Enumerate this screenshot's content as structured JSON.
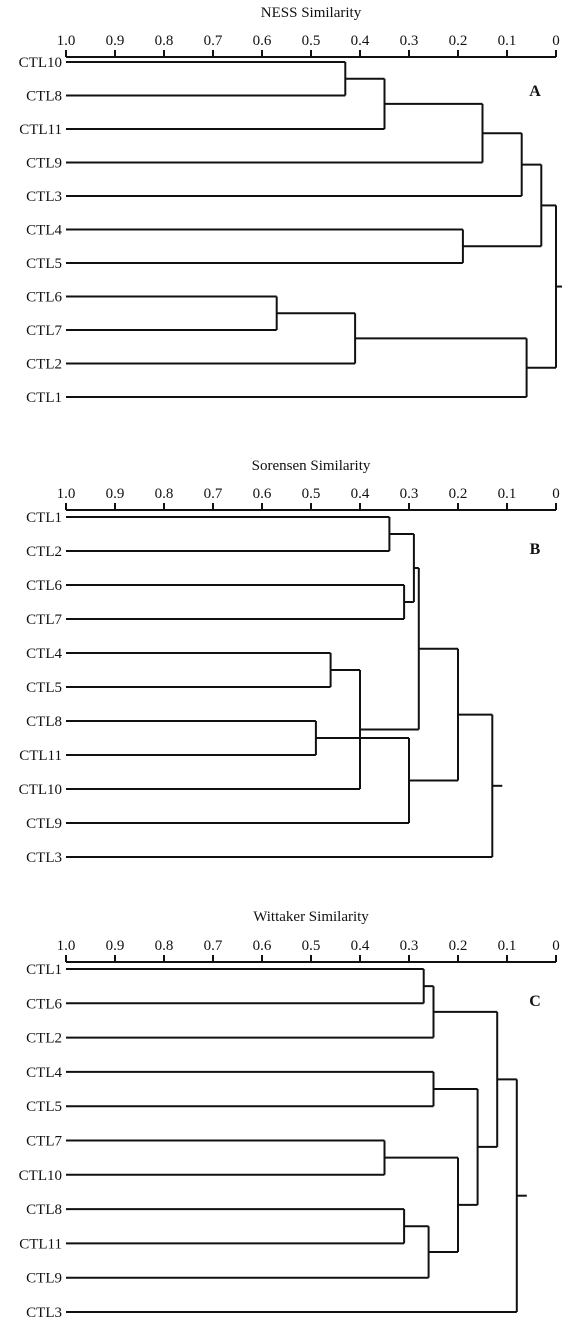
{
  "ticks": [
    "1.0",
    "0.9",
    "0.8",
    "0.7",
    "0.6",
    "0.5",
    "0.4",
    "0.3",
    "0.2",
    "0.1",
    "0"
  ],
  "panels": [
    {
      "id": "A",
      "title": "NESS Similarity",
      "label": "A",
      "leaves": [
        "CTL10",
        "CTL8",
        "CTL11",
        "CTL9",
        "CTL3",
        "CTL4",
        "CTL5",
        "CTL6",
        "CTL7",
        "CTL2",
        "CTL1"
      ],
      "merges": [
        {
          "a": 0,
          "b": 1,
          "sim": 0.43
        },
        {
          "a": 11,
          "b": 2,
          "sim": 0.35
        },
        {
          "a": 12,
          "b": 3,
          "sim": 0.15
        },
        {
          "a": 13,
          "b": 4,
          "sim": 0.07
        },
        {
          "a": 5,
          "b": 6,
          "sim": 0.19
        },
        {
          "a": 14,
          "b": 15,
          "sim": 0.03
        },
        {
          "a": 7,
          "b": 8,
          "sim": 0.57
        },
        {
          "a": 17,
          "b": 9,
          "sim": 0.41
        },
        {
          "a": 18,
          "b": 10,
          "sim": 0.06
        },
        {
          "a": 16,
          "b": 19,
          "sim": 0.0
        }
      ]
    },
    {
      "id": "B",
      "title": "Sorensen Similarity",
      "label": "B",
      "leaves": [
        "CTL1",
        "CTL2",
        "CTL6",
        "CTL7",
        "CTL4",
        "CTL5",
        "CTL8",
        "CTL11",
        "CTL10",
        "CTL9",
        "CTL3"
      ],
      "merges": [
        {
          "a": 0,
          "b": 1,
          "sim": 0.34
        },
        {
          "a": 2,
          "b": 3,
          "sim": 0.31
        },
        {
          "a": 11,
          "b": 12,
          "sim": 0.29
        },
        {
          "a": 4,
          "b": 5,
          "sim": 0.46
        },
        {
          "a": 6,
          "b": 7,
          "sim": 0.49
        },
        {
          "a": 14,
          "b": 8,
          "sim": 0.4
        },
        {
          "a": 15,
          "b": 9,
          "sim": 0.3
        },
        {
          "a": 13,
          "b": 16,
          "sim": 0.28
        },
        {
          "a": 17,
          "b": 18,
          "sim": 0.2
        },
        {
          "a": 19,
          "b": 10,
          "sim": 0.13
        }
      ]
    },
    {
      "id": "C",
      "title": "Wittaker Similarity",
      "label": "C",
      "leaves": [
        "CTL1",
        "CTL6",
        "CTL2",
        "CTL4",
        "CTL5",
        "CTL7",
        "CTL10",
        "CTL8",
        "CTL11",
        "CTL9",
        "CTL3"
      ],
      "merges": [
        {
          "a": 0,
          "b": 1,
          "sim": 0.27
        },
        {
          "a": 11,
          "b": 2,
          "sim": 0.25
        },
        {
          "a": 3,
          "b": 4,
          "sim": 0.25
        },
        {
          "a": 5,
          "b": 6,
          "sim": 0.35
        },
        {
          "a": 7,
          "b": 8,
          "sim": 0.31
        },
        {
          "a": 15,
          "b": 9,
          "sim": 0.26
        },
        {
          "a": 14,
          "b": 16,
          "sim": 0.2
        },
        {
          "a": 13,
          "b": 17,
          "sim": 0.16
        },
        {
          "a": 12,
          "b": 18,
          "sim": 0.12
        },
        {
          "a": 19,
          "b": 10,
          "sim": 0.08
        }
      ]
    }
  ]
}
